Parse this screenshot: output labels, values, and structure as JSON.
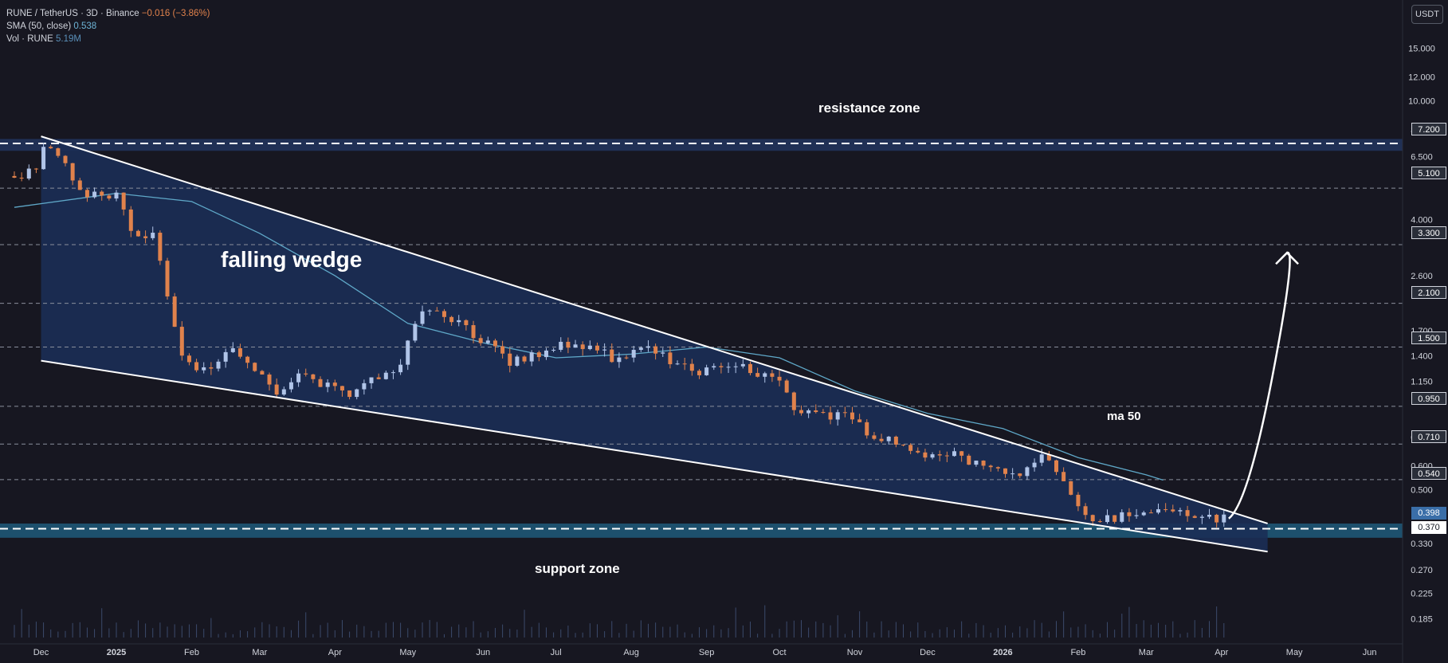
{
  "legend": {
    "symbol": "RUNE / TetherUS · 3D · Binance",
    "change": "−0.016 (−3.86%)",
    "sma_label": "SMA (50, close)",
    "sma_value": "0.538",
    "vol_label": "Vol · RUNE",
    "vol_value": "5.19M"
  },
  "unit_badge": "USDT",
  "annotations": {
    "resistance": "resistance zone",
    "support": "support zone",
    "wedge": "falling wedge",
    "ma": "ma 50"
  },
  "price_tags": {
    "current": "0.398",
    "current_color": "#ffffff",
    "resistance": "7.200",
    "support": "0.370",
    "levels": [
      "5.100",
      "3.300",
      "2.100",
      "1.500",
      "0.950",
      "0.710",
      "0.540"
    ]
  },
  "colors": {
    "background": "#171721",
    "up_candle": "#b0c4e8",
    "down_candle": "#e0824c",
    "wedge_fill": "#1b2d55",
    "support_zone": "#1f5a7a",
    "sma_line": "#5fa8c8",
    "volume": "#3b4a6b"
  },
  "chart_data": {
    "type": "candlestick",
    "title": "RUNE / TetherUS · 3D · Binance",
    "scale": "log",
    "ylim": [
      0.16,
      17.0
    ],
    "y_ticks": [
      "15.000",
      "12.000",
      "10.000",
      "8.000",
      "6.500",
      "4.000",
      "2.600",
      "1.700",
      "1.400",
      "1.150",
      "0.750",
      "0.600",
      "0.500",
      "0.330",
      "0.270",
      "0.225",
      "0.185"
    ],
    "x_ticks": [
      "Dec",
      "2025",
      "Feb",
      "Mar",
      "Apr",
      "May",
      "Jun",
      "Jul",
      "Aug",
      "Sep",
      "Oct",
      "Nov",
      "Dec",
      "2026",
      "Feb",
      "Mar",
      "Apr",
      "May",
      "Jun"
    ],
    "x_range": [
      "2024-11-20",
      "2026-06-08"
    ],
    "horizontal_levels": [
      7.2,
      5.1,
      3.3,
      2.1,
      1.5,
      0.95,
      0.71,
      0.54,
      0.37
    ],
    "resistance_zone": [
      6.8,
      7.45
    ],
    "support_zone": [
      0.345,
      0.385
    ],
    "wedge_upper": [
      [
        "2024-12-01",
        7.6
      ],
      [
        "2026-04-20",
        0.385
      ]
    ],
    "wedge_lower": [
      [
        "2024-12-01",
        1.35
      ],
      [
        "2026-04-20",
        0.31
      ]
    ],
    "sma50": [
      [
        "2024-11-20",
        4.4
      ],
      [
        "2025-01-01",
        4.9
      ],
      [
        "2025-02-01",
        4.6
      ],
      [
        "2025-03-01",
        3.6
      ],
      [
        "2025-04-01",
        2.6
      ],
      [
        "2025-05-01",
        1.8
      ],
      [
        "2025-06-01",
        1.55
      ],
      [
        "2025-07-01",
        1.38
      ],
      [
        "2025-08-01",
        1.42
      ],
      [
        "2025-09-01",
        1.5
      ],
      [
        "2025-10-01",
        1.38
      ],
      [
        "2025-11-01",
        1.07
      ],
      [
        "2025-12-01",
        0.9
      ],
      [
        "2026-01-01",
        0.8
      ],
      [
        "2026-02-01",
        0.64
      ],
      [
        "2026-03-01",
        0.56
      ],
      [
        "2026-03-08",
        0.538
      ]
    ],
    "price_path": [
      [
        "2024-11-20",
        5.6
      ],
      [
        "2024-12-01",
        5.8
      ],
      [
        "2024-12-06",
        7.3
      ],
      [
        "2024-12-12",
        6.6
      ],
      [
        "2024-12-18",
        5.0
      ],
      [
        "2024-12-28",
        4.8
      ],
      [
        "2025-01-05",
        5.0
      ],
      [
        "2025-01-12",
        3.4
      ],
      [
        "2025-01-20",
        3.7
      ],
      [
        "2025-01-26",
        2.0
      ],
      [
        "2025-02-01",
        1.3
      ],
      [
        "2025-02-12",
        1.28
      ],
      [
        "2025-02-20",
        1.45
      ],
      [
        "2025-03-01",
        1.3
      ],
      [
        "2025-03-10",
        1.05
      ],
      [
        "2025-03-20",
        1.2
      ],
      [
        "2025-04-01",
        1.1
      ],
      [
        "2025-04-10",
        1.05
      ],
      [
        "2025-04-20",
        1.2
      ],
      [
        "2025-05-01",
        1.3
      ],
      [
        "2025-05-08",
        1.9
      ],
      [
        "2025-05-15",
        2.0
      ],
      [
        "2025-05-25",
        1.8
      ],
      [
        "2025-06-05",
        1.55
      ],
      [
        "2025-06-15",
        1.35
      ],
      [
        "2025-06-25",
        1.4
      ],
      [
        "2025-07-10",
        1.55
      ],
      [
        "2025-07-20",
        1.45
      ],
      [
        "2025-08-01",
        1.35
      ],
      [
        "2025-08-10",
        1.5
      ],
      [
        "2025-08-20",
        1.35
      ],
      [
        "2025-09-01",
        1.25
      ],
      [
        "2025-09-15",
        1.35
      ],
      [
        "2025-09-25",
        1.2
      ],
      [
        "2025-10-05",
        1.15
      ],
      [
        "2025-10-11",
        0.92
      ],
      [
        "2025-10-20",
        0.9
      ],
      [
        "2025-11-01",
        0.88
      ],
      [
        "2025-11-10",
        0.78
      ],
      [
        "2025-11-20",
        0.72
      ],
      [
        "2025-12-01",
        0.65
      ],
      [
        "2025-12-15",
        0.67
      ],
      [
        "2025-12-25",
        0.6
      ],
      [
        "2026-01-05",
        0.56
      ],
      [
        "2026-01-15",
        0.58
      ],
      [
        "2026-01-22",
        0.67
      ],
      [
        "2026-02-01",
        0.5
      ],
      [
        "2026-02-06",
        0.4
      ],
      [
        "2026-02-15",
        0.4
      ],
      [
        "2026-02-25",
        0.41
      ],
      [
        "2026-03-05",
        0.42
      ],
      [
        "2026-03-15",
        0.43
      ],
      [
        "2026-03-25",
        0.41
      ],
      [
        "2026-04-02",
        0.398
      ]
    ],
    "projection": [
      [
        "2026-04-04",
        0.4
      ],
      [
        "2026-04-12",
        0.45
      ],
      [
        "2026-04-22",
        1.2
      ],
      [
        "2026-04-28",
        3.1
      ]
    ]
  }
}
